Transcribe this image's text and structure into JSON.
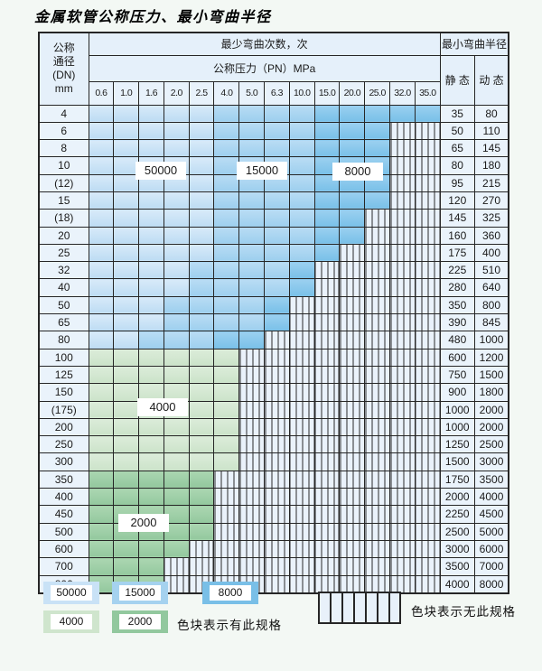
{
  "title": "金属软管公称压力、最小弯曲半径",
  "table": {
    "header": {
      "dn_lines": [
        "公称",
        "通径",
        "(DN)",
        "mm"
      ],
      "cycles_label": "最少弯曲次数，次",
      "radius_label": "最小弯曲半径",
      "pressure_label": "公称压力（PN）MPa",
      "static_label": "静 态",
      "dynamic_label": "动 态",
      "pressures": [
        "0.6",
        "1.0",
        "1.6",
        "2.0",
        "2.5",
        "4.0",
        "5.0",
        "6.3",
        "10.0",
        "15.0",
        "20.0",
        "25.0",
        "32.0",
        "35.0"
      ]
    },
    "zone_meaning": {
      "b50": "50000",
      "b15": "15000",
      "b8": "8000",
      "g4": "4000",
      "g2": "2000",
      "hatch": "无此规格"
    },
    "rows": [
      {
        "dn": "4",
        "static": "35",
        "dynamic": "80",
        "zones": [
          [
            "b50",
            0,
            4
          ],
          [
            "b15",
            5,
            8
          ],
          [
            "b8",
            9,
            13
          ]
        ]
      },
      {
        "dn": "6",
        "static": "50",
        "dynamic": "110",
        "zones": [
          [
            "b50",
            0,
            4
          ],
          [
            "b15",
            5,
            8
          ],
          [
            "b8",
            9,
            11
          ]
        ]
      },
      {
        "dn": "8",
        "static": "65",
        "dynamic": "145",
        "zones": [
          [
            "b50",
            0,
            4
          ],
          [
            "b15",
            5,
            8
          ],
          [
            "b8",
            9,
            11
          ]
        ]
      },
      {
        "dn": "10",
        "static": "80",
        "dynamic": "180",
        "zones": [
          [
            "b50",
            0,
            4
          ],
          [
            "b15",
            5,
            8
          ],
          [
            "b8",
            9,
            11
          ]
        ]
      },
      {
        "dn": "(12)",
        "static": "95",
        "dynamic": "215",
        "zones": [
          [
            "b50",
            0,
            4
          ],
          [
            "b15",
            5,
            8
          ],
          [
            "b8",
            9,
            11
          ]
        ]
      },
      {
        "dn": "15",
        "static": "120",
        "dynamic": "270",
        "zones": [
          [
            "b50",
            0,
            4
          ],
          [
            "b15",
            5,
            8
          ],
          [
            "b8",
            9,
            11
          ]
        ]
      },
      {
        "dn": "(18)",
        "static": "145",
        "dynamic": "325",
        "zones": [
          [
            "b50",
            0,
            4
          ],
          [
            "b15",
            5,
            8
          ],
          [
            "b8",
            9,
            10
          ]
        ]
      },
      {
        "dn": "20",
        "static": "160",
        "dynamic": "360",
        "zones": [
          [
            "b50",
            0,
            4
          ],
          [
            "b15",
            5,
            8
          ],
          [
            "b8",
            9,
            10
          ]
        ]
      },
      {
        "dn": "25",
        "static": "175",
        "dynamic": "400",
        "zones": [
          [
            "b50",
            0,
            4
          ],
          [
            "b15",
            5,
            8
          ],
          [
            "b8",
            9,
            9
          ]
        ]
      },
      {
        "dn": "32",
        "static": "225",
        "dynamic": "510",
        "zones": [
          [
            "b50",
            0,
            3
          ],
          [
            "b15",
            4,
            7
          ],
          [
            "b8",
            8,
            8
          ]
        ]
      },
      {
        "dn": "40",
        "static": "280",
        "dynamic": "640",
        "zones": [
          [
            "b50",
            0,
            3
          ],
          [
            "b15",
            4,
            7
          ],
          [
            "b8",
            8,
            8
          ]
        ]
      },
      {
        "dn": "50",
        "static": "350",
        "dynamic": "800",
        "zones": [
          [
            "b50",
            0,
            2
          ],
          [
            "b15",
            3,
            6
          ],
          [
            "b8",
            7,
            7
          ]
        ]
      },
      {
        "dn": "65",
        "static": "390",
        "dynamic": "845",
        "zones": [
          [
            "b50",
            0,
            2
          ],
          [
            "b15",
            3,
            6
          ],
          [
            "b8",
            7,
            7
          ]
        ]
      },
      {
        "dn": "80",
        "static": "480",
        "dynamic": "1000",
        "zones": [
          [
            "b50",
            0,
            1
          ],
          [
            "b15",
            2,
            4
          ],
          [
            "b8",
            5,
            6
          ]
        ]
      },
      {
        "dn": "100",
        "static": "600",
        "dynamic": "1200",
        "zones": [
          [
            "g4",
            0,
            5
          ]
        ]
      },
      {
        "dn": "125",
        "static": "750",
        "dynamic": "1500",
        "zones": [
          [
            "g4",
            0,
            5
          ]
        ]
      },
      {
        "dn": "150",
        "static": "900",
        "dynamic": "1800",
        "zones": [
          [
            "g4",
            0,
            5
          ]
        ]
      },
      {
        "dn": "(175)",
        "static": "1000",
        "dynamic": "2000",
        "zones": [
          [
            "g4",
            0,
            5
          ]
        ]
      },
      {
        "dn": "200",
        "static": "1000",
        "dynamic": "2000",
        "zones": [
          [
            "g4",
            0,
            5
          ]
        ]
      },
      {
        "dn": "250",
        "static": "1250",
        "dynamic": "2500",
        "zones": [
          [
            "g4",
            0,
            5
          ]
        ]
      },
      {
        "dn": "300",
        "static": "1500",
        "dynamic": "3000",
        "zones": [
          [
            "g4",
            0,
            5
          ]
        ]
      },
      {
        "dn": "350",
        "static": "1750",
        "dynamic": "3500",
        "zones": [
          [
            "g2",
            0,
            4
          ]
        ]
      },
      {
        "dn": "400",
        "static": "2000",
        "dynamic": "4000",
        "zones": [
          [
            "g2",
            0,
            4
          ]
        ]
      },
      {
        "dn": "450",
        "static": "2250",
        "dynamic": "4500",
        "zones": [
          [
            "g2",
            0,
            4
          ]
        ]
      },
      {
        "dn": "500",
        "static": "2500",
        "dynamic": "5000",
        "zones": [
          [
            "g2",
            0,
            4
          ]
        ]
      },
      {
        "dn": "600",
        "static": "3000",
        "dynamic": "6000",
        "zones": [
          [
            "g2",
            0,
            3
          ]
        ]
      },
      {
        "dn": "700",
        "static": "3500",
        "dynamic": "7000",
        "zones": [
          [
            "g2",
            0,
            2
          ]
        ]
      },
      {
        "dn": "800",
        "static": "4000",
        "dynamic": "8000",
        "zones": [
          [
            "g2",
            0,
            2
          ]
        ]
      }
    ]
  },
  "overlay_labels": [
    {
      "text": "50000",
      "key": "lbl-50000"
    },
    {
      "text": "15000",
      "key": "lbl-15000"
    },
    {
      "text": "8000",
      "key": "lbl-8000"
    },
    {
      "text": "4000",
      "key": "lbl-4000"
    },
    {
      "text": "2000",
      "key": "lbl-2000"
    }
  ],
  "legend": {
    "swatches": [
      {
        "label": "50000",
        "zone": "b50"
      },
      {
        "label": "15000",
        "zone": "b15"
      },
      {
        "label": "8000",
        "zone": "b8"
      },
      {
        "label": "4000",
        "zone": "g4"
      },
      {
        "label": "2000",
        "zone": "g2"
      }
    ],
    "has_spec_text": "色块表示有此规格",
    "no_spec_text": "色块表示无此规格"
  },
  "colors": {
    "cycles_50000": "#c9e2f6",
    "cycles_15000": "#a5d2ef",
    "cycles_8000": "#79bfe7",
    "cycles_4000": "#cfe5cd",
    "cycles_2000": "#92c89e",
    "plain_cell": "#eaf3fb",
    "grid_line": "#262626",
    "page_bg": "#f3f8f4"
  }
}
